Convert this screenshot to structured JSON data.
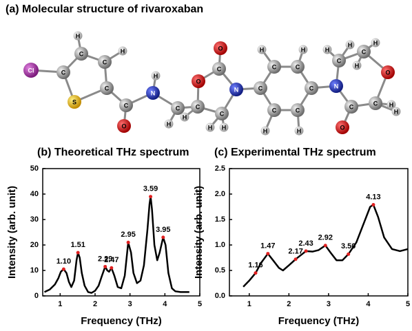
{
  "molecule": {
    "title": "(a)  Molecular structure of rivaroxaban",
    "atoms": [
      "Cl",
      "C",
      "C",
      "C",
      "C",
      "S",
      "H",
      "H",
      "C",
      "O",
      "N",
      "H",
      "C",
      "H",
      "H",
      "C",
      "O",
      "C",
      "O",
      "N",
      "C",
      "H",
      "H",
      "C",
      "C",
      "C",
      "C",
      "C",
      "C",
      "H",
      "H",
      "H",
      "H",
      "N",
      "C",
      "H",
      "H",
      "C",
      "H",
      "H",
      "O",
      "C",
      "H",
      "H",
      "C",
      "O"
    ]
  },
  "chart_data": [
    {
      "type": "line",
      "title": "(b) Theoretical THz spectrum",
      "x_label": "Frequency (THz)",
      "y_label": "Intensity (arb. unit)",
      "xlim": [
        0.5,
        5
      ],
      "xticks": [
        1,
        2,
        3,
        4,
        5
      ],
      "ylim": [
        0,
        50
      ],
      "yticks": [
        0,
        10,
        20,
        30,
        40,
        50
      ],
      "series": [
        {
          "color": "#000000",
          "x": [
            0.55,
            0.7,
            0.85,
            0.95,
            1.02,
            1.1,
            1.18,
            1.25,
            1.32,
            1.4,
            1.47,
            1.51,
            1.56,
            1.62,
            1.7,
            1.8,
            1.9,
            2.0,
            2.1,
            2.2,
            2.29,
            2.35,
            2.4,
            2.47,
            2.55,
            2.65,
            2.75,
            2.85,
            2.95,
            3.03,
            3.1,
            3.2,
            3.3,
            3.4,
            3.5,
            3.56,
            3.59,
            3.63,
            3.7,
            3.78,
            3.85,
            3.95,
            4.02,
            4.1,
            4.2,
            4.3,
            4.45,
            4.6,
            4.7
          ],
          "values": [
            1.5,
            2.5,
            4.5,
            7,
            9.5,
            10.5,
            9,
            5.5,
            3.5,
            6,
            14,
            17,
            15,
            9,
            4,
            1.5,
            1.2,
            2,
            4,
            8,
            11.5,
            10,
            9.5,
            11,
            8,
            3.5,
            3,
            8,
            21,
            17,
            9,
            5,
            6,
            12,
            26,
            36,
            39,
            34,
            20,
            14,
            17,
            23,
            20,
            9,
            3,
            1.8,
            1.5,
            1.5,
            1.5
          ]
        }
      ],
      "annotations": [
        {
          "x": 1.1,
          "y": 10.5,
          "text": "1.10"
        },
        {
          "x": 1.51,
          "y": 17,
          "text": "1.51"
        },
        {
          "x": 2.29,
          "y": 11.5,
          "text": "2.29"
        },
        {
          "x": 2.47,
          "y": 11,
          "text": "2.47"
        },
        {
          "x": 2.95,
          "y": 21,
          "text": "2.95"
        },
        {
          "x": 3.59,
          "y": 39,
          "text": "3.59"
        },
        {
          "x": 3.95,
          "y": 23,
          "text": "3.95"
        }
      ],
      "marker_color": "#e02020"
    },
    {
      "type": "line",
      "title": "(c) Experimental THz spectrum",
      "x_label": "Frequency (THz)",
      "y_label": "Intensity (arb. unit)",
      "xlim": [
        0.5,
        5
      ],
      "xticks": [
        1,
        2,
        3,
        4,
        5
      ],
      "ylim": [
        0,
        2.5
      ],
      "yticks": [
        {
          "value": 0,
          "label": "0.0"
        },
        {
          "value": 0.5,
          "label": "0.5"
        },
        {
          "value": 1,
          "label": "1.0"
        },
        {
          "value": 1.5,
          "label": "1.5"
        },
        {
          "value": 2,
          "label": "2.0"
        },
        {
          "value": 2.5,
          "label": "2.5"
        }
      ],
      "series": [
        {
          "color": "#000000",
          "x": [
            0.85,
            1.0,
            1.16,
            1.3,
            1.47,
            1.6,
            1.75,
            1.85,
            2.0,
            2.17,
            2.3,
            2.43,
            2.6,
            2.75,
            2.92,
            3.05,
            3.2,
            3.35,
            3.5,
            3.7,
            3.9,
            4.05,
            4.13,
            4.25,
            4.4,
            4.6,
            4.8,
            5.0
          ],
          "values": [
            0.18,
            0.3,
            0.45,
            0.65,
            0.83,
            0.7,
            0.55,
            0.5,
            0.6,
            0.72,
            0.8,
            0.88,
            0.87,
            0.9,
            0.99,
            0.85,
            0.7,
            0.7,
            0.82,
            1.05,
            1.45,
            1.75,
            1.79,
            1.55,
            1.15,
            0.92,
            0.88,
            0.92
          ]
        }
      ],
      "annotations": [
        {
          "x": 1.16,
          "y": 0.45,
          "text": "1.16"
        },
        {
          "x": 1.47,
          "y": 0.83,
          "text": "1.47"
        },
        {
          "x": 2.17,
          "y": 0.72,
          "text": "2.17"
        },
        {
          "x": 2.43,
          "y": 0.88,
          "text": "2.43"
        },
        {
          "x": 2.92,
          "y": 0.99,
          "text": "2.92"
        },
        {
          "x": 3.5,
          "y": 0.82,
          "text": "3.50"
        },
        {
          "x": 4.13,
          "y": 1.79,
          "text": "4.13"
        }
      ],
      "marker_color": "#e02020"
    }
  ]
}
